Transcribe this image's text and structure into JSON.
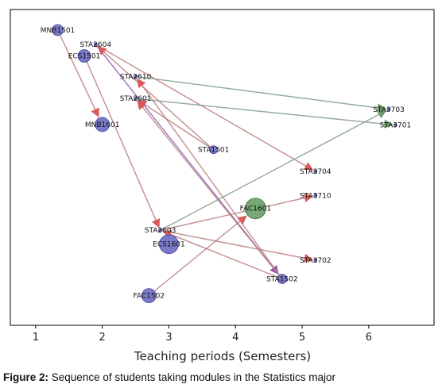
{
  "caption": {
    "label": "Figure 2:",
    "text": "Sequence of students taking modules in the Statistics major"
  },
  "chart_data": {
    "type": "network",
    "xlabel": "Teaching periods (Semesters)",
    "ylabel": "",
    "title": "",
    "xlim": [
      0.62,
      6.98
    ],
    "x_ticks": [
      1,
      2,
      3,
      4,
      5,
      6
    ],
    "y_axis_visible": false,
    "grid": false,
    "colors": {
      "node_blue": "#6b6bc2",
      "node_green": "#5f9a5f",
      "edge_red": "#b97a7a",
      "edge_green": "#7f9a88",
      "arrow_red": "#d95a5a",
      "arrow_green": "#6a9a6a",
      "arrow_purple": "#8a5ab2"
    },
    "nodes": [
      {
        "id": "MNB1501",
        "x": 1.33,
        "y": 0.935,
        "size": 7,
        "color": "blue"
      },
      {
        "id": "ECS1501",
        "x": 1.73,
        "y": 0.853,
        "size": 8,
        "color": "blue"
      },
      {
        "id": "MNB1601",
        "x": 2.0,
        "y": 0.636,
        "size": 9,
        "color": "blue"
      },
      {
        "id": "STA2604",
        "x": 1.9,
        "y": 0.889,
        "size": 2,
        "color": "blue"
      },
      {
        "id": "STA2610",
        "x": 2.5,
        "y": 0.788,
        "size": 2,
        "color": "blue"
      },
      {
        "id": "STA2601",
        "x": 2.5,
        "y": 0.718,
        "size": 2,
        "color": "blue"
      },
      {
        "id": "STA1501",
        "x": 3.67,
        "y": 0.556,
        "size": 5,
        "color": "blue"
      },
      {
        "id": "STA2603",
        "x": 2.87,
        "y": 0.301,
        "size": 2,
        "color": "blue"
      },
      {
        "id": "ECS1601",
        "x": 3.0,
        "y": 0.257,
        "size": 12,
        "color": "blue"
      },
      {
        "id": "FAC1502",
        "x": 2.7,
        "y": 0.094,
        "size": 9,
        "color": "blue"
      },
      {
        "id": "FAC1601",
        "x": 4.3,
        "y": 0.37,
        "size": 13,
        "color": "green"
      },
      {
        "id": "STA1502",
        "x": 4.7,
        "y": 0.147,
        "size": 6,
        "color": "blue"
      },
      {
        "id": "STA3703",
        "x": 6.3,
        "y": 0.684,
        "size": 2,
        "color": "blue"
      },
      {
        "id": "STA3701",
        "x": 6.4,
        "y": 0.634,
        "size": 2,
        "color": "blue"
      },
      {
        "id": "STA3704",
        "x": 5.2,
        "y": 0.487,
        "size": 2,
        "color": "blue"
      },
      {
        "id": "STA3710",
        "x": 5.2,
        "y": 0.411,
        "size": 2,
        "color": "blue"
      },
      {
        "id": "STA3702",
        "x": 5.2,
        "y": 0.206,
        "size": 2,
        "color": "blue"
      }
    ],
    "edges": [
      {
        "from": "MNB1501",
        "to": "MNB1601",
        "color": "red"
      },
      {
        "from": "ECS1501",
        "to": "STA2603",
        "color": "red"
      },
      {
        "from": "STA2604",
        "to": "STA1502",
        "color": "purple"
      },
      {
        "from": "STA2604",
        "to": "STA3704",
        "color": "red"
      },
      {
        "from": "STA1501",
        "to": "STA2604",
        "color": "red"
      },
      {
        "from": "STA1501",
        "to": "STA2601",
        "color": "red"
      },
      {
        "from": "STA2610",
        "to": "STA3703",
        "color": "green"
      },
      {
        "from": "STA2601",
        "to": "STA3701",
        "color": "green"
      },
      {
        "from": "STA1502",
        "to": "STA2610",
        "color": "red"
      },
      {
        "from": "STA1502",
        "to": "STA2601",
        "color": "red"
      },
      {
        "from": "STA1502",
        "to": "STA2603",
        "color": "red"
      },
      {
        "from": "STA2603",
        "to": "STA3703",
        "color": "green"
      },
      {
        "from": "STA2603",
        "to": "STA3710",
        "color": "red"
      },
      {
        "from": "STA2603",
        "to": "STA3702",
        "color": "red"
      },
      {
        "from": "FAC1502",
        "to": "FAC1601",
        "color": "red"
      }
    ]
  }
}
